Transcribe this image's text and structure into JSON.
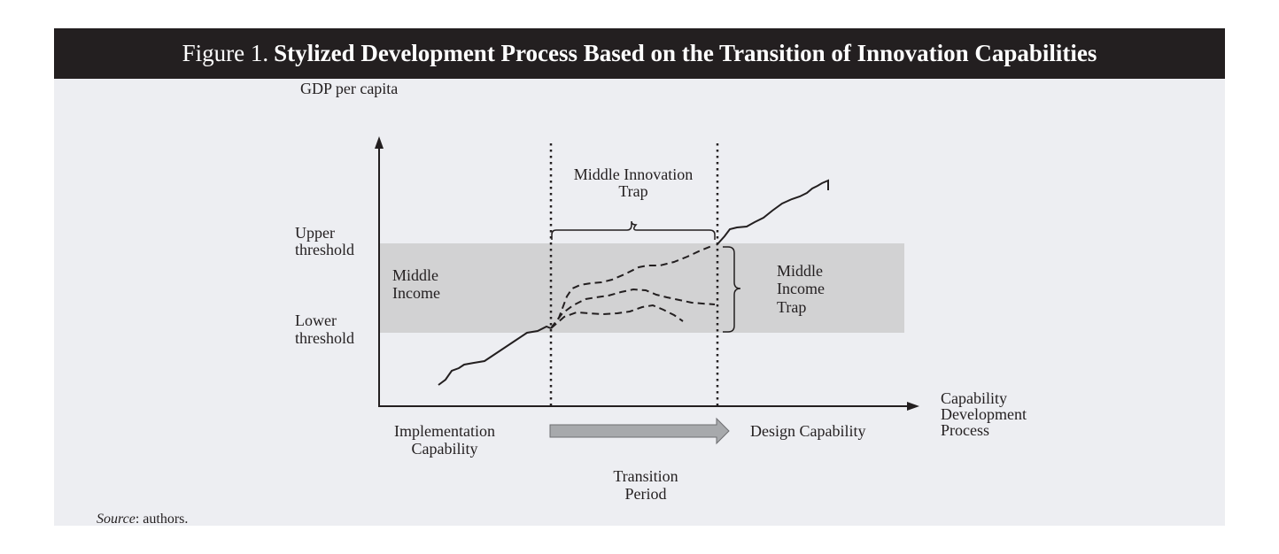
{
  "figure": {
    "number": "Figure 1.",
    "title": "Stylized Development Process Based on the Transition of Innovation Capabilities"
  },
  "axes": {
    "y_label": "GDP per capita",
    "x_label_lines": [
      "Capability",
      "Development",
      "Process"
    ]
  },
  "thresholds": {
    "upper_lines": [
      "Upper",
      "threshold"
    ],
    "lower_lines": [
      "Lower",
      "threshold"
    ]
  },
  "band": {
    "label_lines": [
      "Middle",
      "Income"
    ],
    "fill": "#d2d2d3"
  },
  "traps": {
    "innovation_lines": [
      "Middle Innovation",
      "Trap"
    ],
    "income_lines": [
      "Middle",
      "Income",
      "Trap"
    ]
  },
  "capabilities": {
    "implementation_lines": [
      "Implementation",
      "Capability"
    ],
    "design": "Design Capability",
    "transition_lines": [
      "Transition",
      "Period"
    ]
  },
  "source": {
    "label": "Source",
    "text": ": authors."
  },
  "colors": {
    "header_bg": "#231f20",
    "panel_bg": "#edeef2",
    "ink": "#231f20",
    "arrow_fill": "#a7a9ac"
  }
}
